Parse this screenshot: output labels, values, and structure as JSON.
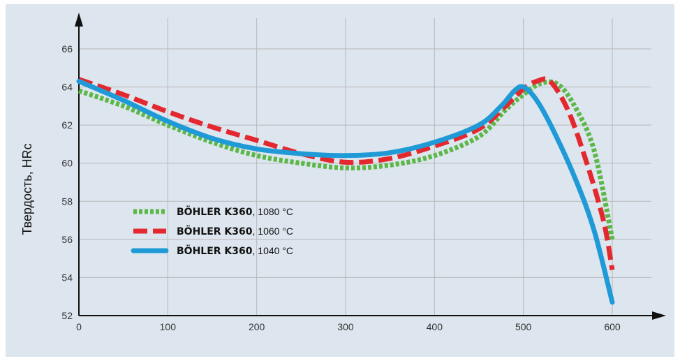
{
  "chart_data": {
    "type": "line",
    "title": "",
    "xlabel": "",
    "ylabel": "Твердость, HRc",
    "xlim": [
      0,
      600
    ],
    "ylim": [
      52,
      66
    ],
    "xticks": [
      0,
      100,
      200,
      300,
      400,
      500,
      600
    ],
    "yticks": [
      52,
      54,
      56,
      58,
      60,
      62,
      64,
      66
    ],
    "grid": true,
    "legend_position": "lower-left",
    "series": [
      {
        "name": "BÖHLER K360",
        "temperature": "1080 °C",
        "color": "#5bb848",
        "style": "dotted",
        "points": [
          [
            0,
            63.8
          ],
          [
            50,
            63.0
          ],
          [
            100,
            62.0
          ],
          [
            150,
            61.1
          ],
          [
            200,
            60.4
          ],
          [
            250,
            60.0
          ],
          [
            300,
            59.75
          ],
          [
            350,
            59.9
          ],
          [
            400,
            60.4
          ],
          [
            450,
            61.4
          ],
          [
            480,
            62.8
          ],
          [
            500,
            63.6
          ],
          [
            520,
            64.2
          ],
          [
            540,
            64.1
          ],
          [
            560,
            62.8
          ],
          [
            580,
            60.6
          ],
          [
            600,
            56.0
          ]
        ]
      },
      {
        "name": "BÖHLER K360",
        "temperature": "1060 °C",
        "color": "#e4282f",
        "style": "dashed",
        "points": [
          [
            0,
            64.4
          ],
          [
            50,
            63.6
          ],
          [
            100,
            62.7
          ],
          [
            150,
            61.9
          ],
          [
            200,
            61.2
          ],
          [
            250,
            60.5
          ],
          [
            300,
            60.05
          ],
          [
            350,
            60.25
          ],
          [
            400,
            60.9
          ],
          [
            450,
            61.8
          ],
          [
            480,
            63.0
          ],
          [
            500,
            63.9
          ],
          [
            515,
            64.3
          ],
          [
            530,
            64.3
          ],
          [
            550,
            62.8
          ],
          [
            570,
            60.2
          ],
          [
            590,
            57.0
          ],
          [
            600,
            54.4
          ]
        ]
      },
      {
        "name": "BÖHLER K360",
        "temperature": "1040 °C",
        "color": "#1f9ad7",
        "style": "solid",
        "points": [
          [
            0,
            64.3
          ],
          [
            50,
            63.3
          ],
          [
            100,
            62.2
          ],
          [
            150,
            61.3
          ],
          [
            200,
            60.75
          ],
          [
            250,
            60.5
          ],
          [
            300,
            60.4
          ],
          [
            350,
            60.55
          ],
          [
            400,
            61.1
          ],
          [
            450,
            62.0
          ],
          [
            475,
            63.0
          ],
          [
            490,
            63.8
          ],
          [
            500,
            64.0
          ],
          [
            515,
            63.3
          ],
          [
            535,
            61.6
          ],
          [
            560,
            59.0
          ],
          [
            580,
            56.4
          ],
          [
            600,
            52.7
          ]
        ]
      }
    ]
  }
}
